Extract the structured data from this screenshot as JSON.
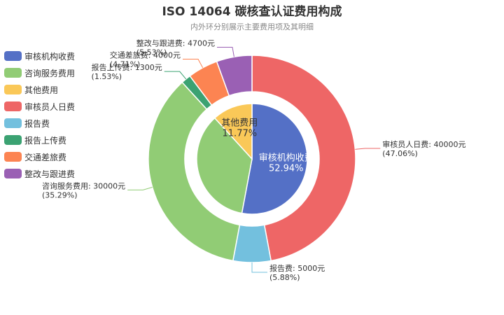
{
  "chart_data": {
    "type": "pie",
    "title": "ISO 14064 碳核查认证费用构成",
    "subtitle": "内外环分别展示主要费用项及其明细",
    "colors": {
      "审核机构收费": "#5470c6",
      "咨询服务费用": "#91cc75",
      "其他费用": "#fac858",
      "审核员人日费": "#ee6666",
      "报告费": "#73c0de",
      "报告上传费": "#3ba272",
      "交通差旅费": "#fc8452",
      "整改与跟进费": "#9a60b4"
    },
    "legend": [
      "审核机构收费",
      "咨询服务费用",
      "其他费用",
      "审核员人日费",
      "报告费",
      "报告上传费",
      "交通差旅费",
      "整改与跟进费"
    ],
    "inner": [
      {
        "name": "审核机构收费",
        "value": 45000,
        "label": "审核机构收费",
        "percent": "52.94%"
      },
      {
        "name": "咨询服务费用",
        "value": 30000,
        "label": "",
        "percent": ""
      },
      {
        "name": "其他费用",
        "value": 10000,
        "label": "其他费用",
        "percent": "11.77%"
      }
    ],
    "outer": [
      {
        "name": "审核员人日费",
        "value": 40000,
        "label": "审核员人日费: 40000元",
        "percent": "(47.06%)"
      },
      {
        "name": "报告费",
        "value": 5000,
        "label": "报告费: 5000元",
        "percent": "(5.88%)"
      },
      {
        "name": "咨询服务费用",
        "value": 30000,
        "label": "咨询服务费用: 30000元",
        "percent": "(35.29%)"
      },
      {
        "name": "报告上传费",
        "value": 1300,
        "label": "报告上传费: 1300元",
        "percent": "(1.53%)"
      },
      {
        "name": "交通差旅费",
        "value": 4000,
        "label": "交通差旅费: 4000元",
        "percent": "(4.71%)"
      },
      {
        "name": "整改与跟进费",
        "value": 4700,
        "label": "整改与跟进费: 4700元",
        "percent": "(5.53%)"
      }
    ]
  }
}
